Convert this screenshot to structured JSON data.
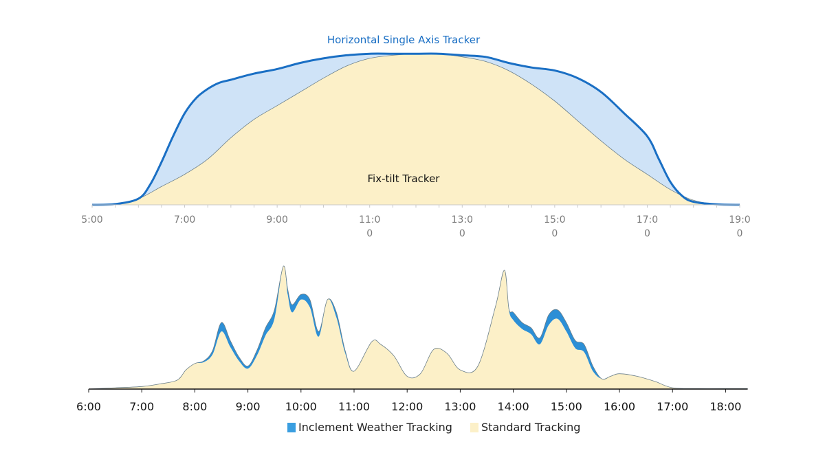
{
  "chart_data": [
    {
      "type": "area",
      "annotations": [
        "Horizontal Single Axis Tracker",
        "Fix-tilt Tracker"
      ],
      "x_tick_labels": [
        "5:00",
        "7:00",
        "9:00",
        "11:0\n0",
        "13:0\n0",
        "15:0\n0",
        "17:0\n0",
        "19:0\n0"
      ],
      "xlim": [
        "5:00",
        "19:00"
      ],
      "ylim": [
        0,
        1
      ],
      "y_axis_shown": false,
      "grid": false,
      "colors": {
        "tracker_line": "#1a6fc4",
        "tracker_fill": "#cfe3f7",
        "fixed_fill": "#fcf0c8",
        "fixed_line": "#6b7f8a"
      },
      "series": [
        {
          "label": "Horizontal Single Axis Tracker",
          "x": [
            "5:00",
            "5:30",
            "6:00",
            "6:15",
            "6:30",
            "6:45",
            "7:00",
            "7:15",
            "7:30",
            "7:45",
            "8:00",
            "8:30",
            "9:00",
            "9:30",
            "10:00",
            "10:30",
            "11:00",
            "11:30",
            "12:00",
            "12:30",
            "13:00",
            "13:30",
            "14:00",
            "14:30",
            "15:00",
            "15:30",
            "16:00",
            "16:30",
            "17:00",
            "17:15",
            "17:30",
            "17:45",
            "18:00",
            "18:30",
            "19:00"
          ],
          "values": [
            0,
            0.005,
            0.04,
            0.13,
            0.28,
            0.45,
            0.6,
            0.7,
            0.76,
            0.8,
            0.82,
            0.86,
            0.89,
            0.93,
            0.96,
            0.98,
            0.99,
            0.99,
            0.99,
            0.99,
            0.98,
            0.97,
            0.93,
            0.9,
            0.88,
            0.83,
            0.74,
            0.6,
            0.45,
            0.3,
            0.15,
            0.06,
            0.02,
            0.003,
            0
          ]
        },
        {
          "label": "Fix-tilt Tracker",
          "x": [
            "5:00",
            "5:30",
            "6:00",
            "6:30",
            "7:00",
            "7:30",
            "8:00",
            "8:30",
            "9:00",
            "9:30",
            "10:00",
            "10:30",
            "11:00",
            "11:30",
            "12:00",
            "12:30",
            "13:00",
            "13:30",
            "14:00",
            "14:30",
            "15:00",
            "15:30",
            "16:00",
            "16:30",
            "17:00",
            "17:30",
            "18:00",
            "18:30",
            "19:00"
          ],
          "values": [
            0,
            0.005,
            0.04,
            0.12,
            0.2,
            0.3,
            0.44,
            0.56,
            0.65,
            0.74,
            0.83,
            0.91,
            0.96,
            0.98,
            0.99,
            0.99,
            0.97,
            0.94,
            0.88,
            0.79,
            0.68,
            0.55,
            0.42,
            0.3,
            0.2,
            0.1,
            0.03,
            0.003,
            0
          ]
        }
      ]
    },
    {
      "type": "area",
      "x_tick_labels": [
        "6:00",
        "7:00",
        "8:00",
        "9:00",
        "10:00",
        "11:00",
        "12:00",
        "13:00",
        "14:00",
        "15:00",
        "16:00",
        "17:00",
        "18:00"
      ],
      "xlim": [
        "6:00",
        "18:25"
      ],
      "ylim": [
        0,
        1
      ],
      "y_axis_shown": false,
      "grid": false,
      "legend_position": "bottom",
      "legend": [
        "Inclement Weather Tracking",
        "Standard Tracking"
      ],
      "colors": {
        "inclement": "#2c8fd6",
        "standard": "#fcf0c8",
        "outline": "#6b7f8a",
        "legend_inclement": "#3a9ee0",
        "legend_standard": "#fcf0c8"
      },
      "series": [
        {
          "name": "Inclement Weather Tracking",
          "x": [
            "6:00",
            "6:30",
            "7:00",
            "7:20",
            "7:40",
            "7:50",
            "8:00",
            "8:10",
            "8:20",
            "8:30",
            "8:40",
            "8:50",
            "9:00",
            "9:10",
            "9:20",
            "9:30",
            "9:40",
            "9:45",
            "9:50",
            "10:00",
            "10:10",
            "10:20",
            "10:30",
            "10:40",
            "10:50",
            "11:00",
            "11:20",
            "11:30",
            "11:45",
            "12:00",
            "12:15",
            "12:30",
            "12:45",
            "13:00",
            "13:20",
            "13:40",
            "13:50",
            "13:55",
            "14:00",
            "14:10",
            "14:20",
            "14:30",
            "14:40",
            "14:50",
            "15:00",
            "15:10",
            "15:20",
            "15:30",
            "15:40",
            "15:50",
            "16:00",
            "16:20",
            "16:40",
            "17:00",
            "17:30",
            "18:00",
            "18:25"
          ],
          "values": [
            0,
            0.01,
            0.02,
            0.04,
            0.07,
            0.15,
            0.2,
            0.22,
            0.3,
            0.52,
            0.38,
            0.25,
            0.18,
            0.3,
            0.48,
            0.62,
            0.96,
            0.78,
            0.66,
            0.74,
            0.7,
            0.45,
            0.7,
            0.6,
            0.3,
            0.14,
            0.37,
            0.35,
            0.26,
            0.1,
            0.12,
            0.31,
            0.28,
            0.15,
            0.18,
            0.65,
            0.93,
            0.63,
            0.6,
            0.52,
            0.48,
            0.4,
            0.58,
            0.62,
            0.52,
            0.38,
            0.35,
            0.18,
            0.08,
            0.1,
            0.12,
            0.1,
            0.06,
            0.01,
            0.004,
            0.004,
            0.004
          ]
        },
        {
          "name": "Standard Tracking",
          "x": [
            "6:00",
            "6:30",
            "7:00",
            "7:20",
            "7:40",
            "7:50",
            "8:00",
            "8:10",
            "8:20",
            "8:30",
            "8:40",
            "8:50",
            "9:00",
            "9:10",
            "9:20",
            "9:30",
            "9:40",
            "9:45",
            "9:50",
            "10:00",
            "10:10",
            "10:20",
            "10:30",
            "10:40",
            "10:50",
            "11:00",
            "11:20",
            "11:30",
            "11:45",
            "12:00",
            "12:15",
            "12:30",
            "12:45",
            "13:00",
            "13:20",
            "13:40",
            "13:50",
            "13:55",
            "14:00",
            "14:10",
            "14:20",
            "14:30",
            "14:40",
            "14:50",
            "15:00",
            "15:10",
            "15:20",
            "15:30",
            "15:40",
            "15:50",
            "16:00",
            "16:20",
            "16:40",
            "17:00",
            "17:30",
            "18:00",
            "18:25"
          ],
          "values": [
            0,
            0.01,
            0.02,
            0.04,
            0.07,
            0.15,
            0.2,
            0.21,
            0.27,
            0.45,
            0.33,
            0.22,
            0.16,
            0.26,
            0.42,
            0.55,
            0.96,
            0.74,
            0.6,
            0.7,
            0.64,
            0.41,
            0.7,
            0.56,
            0.28,
            0.14,
            0.37,
            0.35,
            0.26,
            0.1,
            0.12,
            0.31,
            0.28,
            0.15,
            0.18,
            0.65,
            0.93,
            0.62,
            0.54,
            0.47,
            0.43,
            0.35,
            0.5,
            0.55,
            0.45,
            0.32,
            0.29,
            0.14,
            0.08,
            0.1,
            0.12,
            0.1,
            0.06,
            0.01,
            0.004,
            0.004,
            0.004
          ]
        }
      ]
    }
  ]
}
